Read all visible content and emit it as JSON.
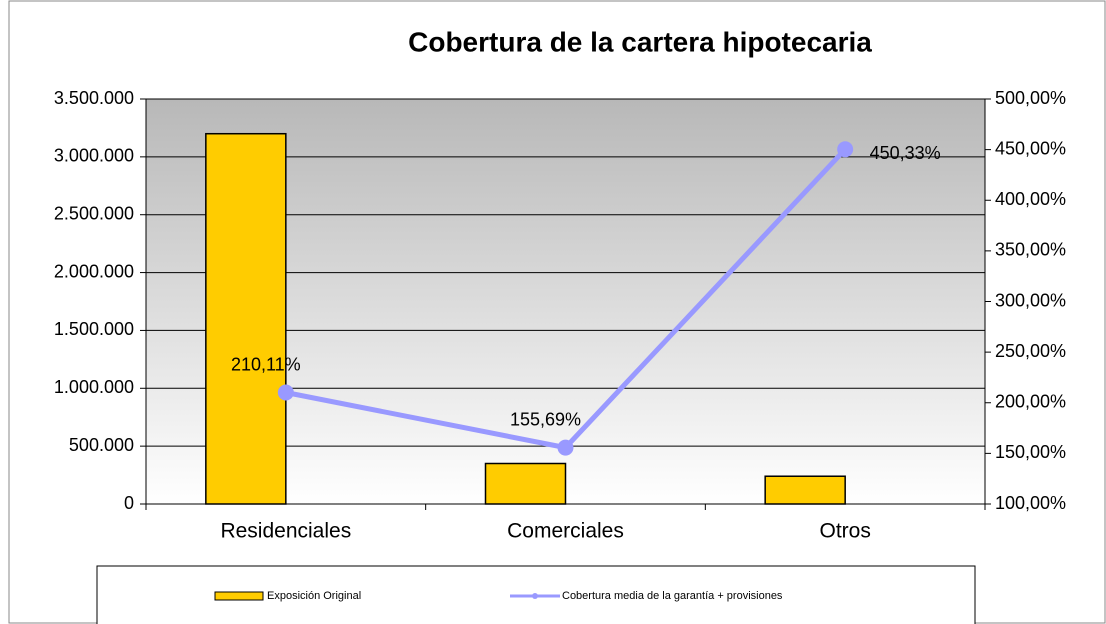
{
  "chart_data": {
    "type": "bar_line",
    "title": "Cobertura de la cartera hipotecaria",
    "categories": [
      "Residenciales",
      "Comerciales",
      "Otros"
    ],
    "series": [
      {
        "name": "Exposición Original",
        "type": "bar",
        "color": "#ffcc00",
        "values": [
          3200000,
          350000,
          240000
        ]
      },
      {
        "name": "Cobertura media de la garantía + provisiones",
        "type": "line",
        "axis": "y2",
        "color": "#9999ff",
        "values": [
          210.11,
          155.69,
          450.33
        ],
        "value_labels": [
          "210,11%",
          "155,69%",
          "450,33%"
        ]
      }
    ],
    "ylim": [
      0,
      3500000
    ],
    "yticks": [
      0,
      {
        "value": 500000,
        "label": "500.000"
      },
      {
        "value": 1000000,
        "label": "1.000.000"
      },
      {
        "value": 1500000,
        "label": "1.500.000"
      },
      {
        "value": 2000000,
        "label": "2.000.000"
      },
      {
        "value": 2500000,
        "label": "2.500.000"
      },
      {
        "value": 3000000,
        "label": "3.000.000"
      },
      {
        "value": 3500000,
        "label": "3.500.000"
      }
    ],
    "y2lim": [
      100,
      500
    ],
    "y2ticks": [
      {
        "value": 100,
        "label": "100,00%"
      },
      {
        "value": 150,
        "label": "150,00%"
      },
      {
        "value": 200,
        "label": "200,00%"
      },
      {
        "value": 250,
        "label": "250,00%"
      },
      {
        "value": 300,
        "label": "300,00%"
      },
      {
        "value": 350,
        "label": "350,00%"
      },
      {
        "value": 400,
        "label": "400,00%"
      },
      {
        "value": 450,
        "label": "450,00%"
      },
      {
        "value": 500,
        "label": "500,00%"
      }
    ],
    "grid": true,
    "legend": "bottom"
  }
}
